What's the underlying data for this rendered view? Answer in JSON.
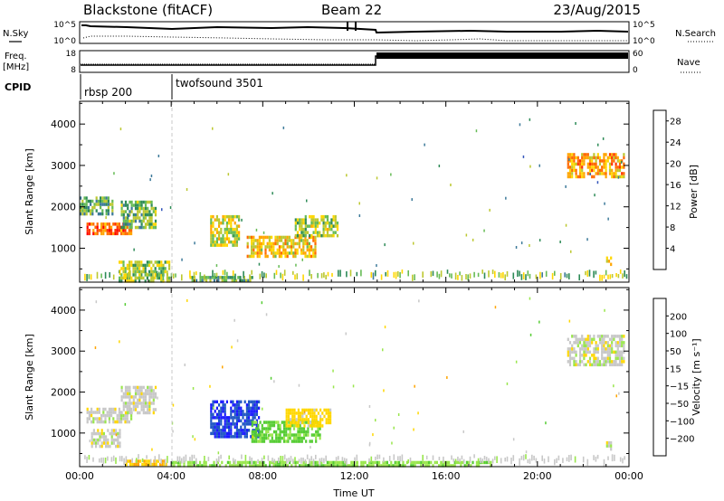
{
  "header": {
    "title": "Blackstone (fitACF)",
    "beam": "Beam 22",
    "date": "23/Aug/2015"
  },
  "top_panels": {
    "nsky_label": "N.Sky",
    "nsky_ticks": [
      "10^5",
      "10^0"
    ],
    "nsearch_label": "N.Search",
    "freq_label_line1": "Freq.",
    "freq_label_line2": "[MHz]",
    "freq_ticks": [
      "18",
      "8"
    ],
    "nave_label": "Nave",
    "nave_ticks": [
      "60",
      "0"
    ],
    "cpid_label": "CPID",
    "cpid_segments": [
      "rbsp 200",
      "twofsound 3501"
    ]
  },
  "chart_data": [
    {
      "type": "heatmap",
      "name": "power",
      "ylabel": "Slant Range [km]",
      "xlabel": "",
      "x_ticks": [
        "00:00",
        "04:00",
        "08:00",
        "12:00",
        "16:00",
        "20:00",
        "00:00"
      ],
      "y_ticks": [
        1000,
        2000,
        3000,
        4000
      ],
      "ylim": [
        180,
        4550
      ],
      "colorbar_label": "Power [dB]",
      "colorbar_ticks": [
        4,
        8,
        12,
        16,
        20,
        24,
        28
      ],
      "colorbar_range": [
        0,
        30
      ],
      "colors": [
        "#1a1aff",
        "#3355bb",
        "#3d7a9a",
        "#2e8b57",
        "#66bb55",
        "#bcc830",
        "#ffd700",
        "#ffa500",
        "#ff6a00",
        "#ff3300",
        "#ff0000"
      ],
      "regions": [
        {
          "t": [
            0.3,
            2.3
          ],
          "r": [
            1320,
            1620
          ],
          "value": 24
        },
        {
          "t": [
            0.0,
            1.4
          ],
          "r": [
            1800,
            2250
          ],
          "value": 11
        },
        {
          "t": [
            1.8,
            3.3
          ],
          "r": [
            1500,
            2150
          ],
          "value": 12
        },
        {
          "t": [
            1.7,
            3.9
          ],
          "r": [
            200,
            700
          ],
          "value": 14
        },
        {
          "t": [
            4.8,
            7.5
          ],
          "r": [
            200,
            330
          ],
          "value": 12
        },
        {
          "t": [
            5.7,
            7.0
          ],
          "r": [
            1100,
            1800
          ],
          "value": 16
        },
        {
          "t": [
            7.3,
            10.3
          ],
          "r": [
            800,
            1300
          ],
          "value": 18
        },
        {
          "t": [
            9.4,
            11.3
          ],
          "r": [
            1300,
            1800
          ],
          "value": 15
        },
        {
          "t": [
            21.3,
            23.8
          ],
          "r": [
            2700,
            3300
          ],
          "value": 20
        },
        {
          "t": [
            23.0,
            23.2
          ],
          "r": [
            600,
            800
          ],
          "value": 18
        }
      ]
    },
    {
      "type": "heatmap",
      "name": "velocity",
      "ylabel": "Slant Range [km]",
      "xlabel": "Time UT",
      "x_ticks": [
        "00:00",
        "04:00",
        "08:00",
        "12:00",
        "16:00",
        "20:00",
        "00:00"
      ],
      "y_ticks": [
        1000,
        2000,
        3000,
        4000
      ],
      "ylim": [
        180,
        4550
      ],
      "colorbar_label": "Velocity [m s⁻¹]",
      "colorbar_ticks": [
        200,
        100,
        50,
        15,
        -15,
        -50,
        -100,
        -200
      ],
      "colors": [
        "#1a1aff",
        "#1f56c4",
        "#2e8b57",
        "#55cc33",
        "#99e64c",
        "#c8c8c8",
        "#ffd700",
        "#ffa500",
        "#ff7a00",
        "#ff3300",
        "#ff0000"
      ],
      "regions": [
        {
          "t": [
            0.3,
            2.3
          ],
          "r": [
            1300,
            1620
          ],
          "value": 0
        },
        {
          "t": [
            0.5,
            1.8
          ],
          "r": [
            700,
            1100
          ],
          "value": 0
        },
        {
          "t": [
            1.8,
            3.3
          ],
          "r": [
            1500,
            2150
          ],
          "value": 0
        },
        {
          "t": [
            2.0,
            3.8
          ],
          "r": [
            200,
            350
          ],
          "value": -50
        },
        {
          "t": [
            5.7,
            7.8
          ],
          "r": [
            900,
            1800
          ],
          "value": 200
        },
        {
          "t": [
            7.5,
            10.5
          ],
          "r": [
            800,
            1300
          ],
          "value": 60
        },
        {
          "t": [
            9.0,
            11.0
          ],
          "r": [
            1200,
            1600
          ],
          "value": -30
        },
        {
          "t": [
            4.0,
            18.0
          ],
          "r": [
            200,
            320
          ],
          "value": 40
        },
        {
          "t": [
            21.3,
            23.8
          ],
          "r": [
            2700,
            3400
          ],
          "value": 0
        },
        {
          "t": [
            23.0,
            23.2
          ],
          "r": [
            600,
            800
          ],
          "value": 0
        }
      ]
    }
  ]
}
